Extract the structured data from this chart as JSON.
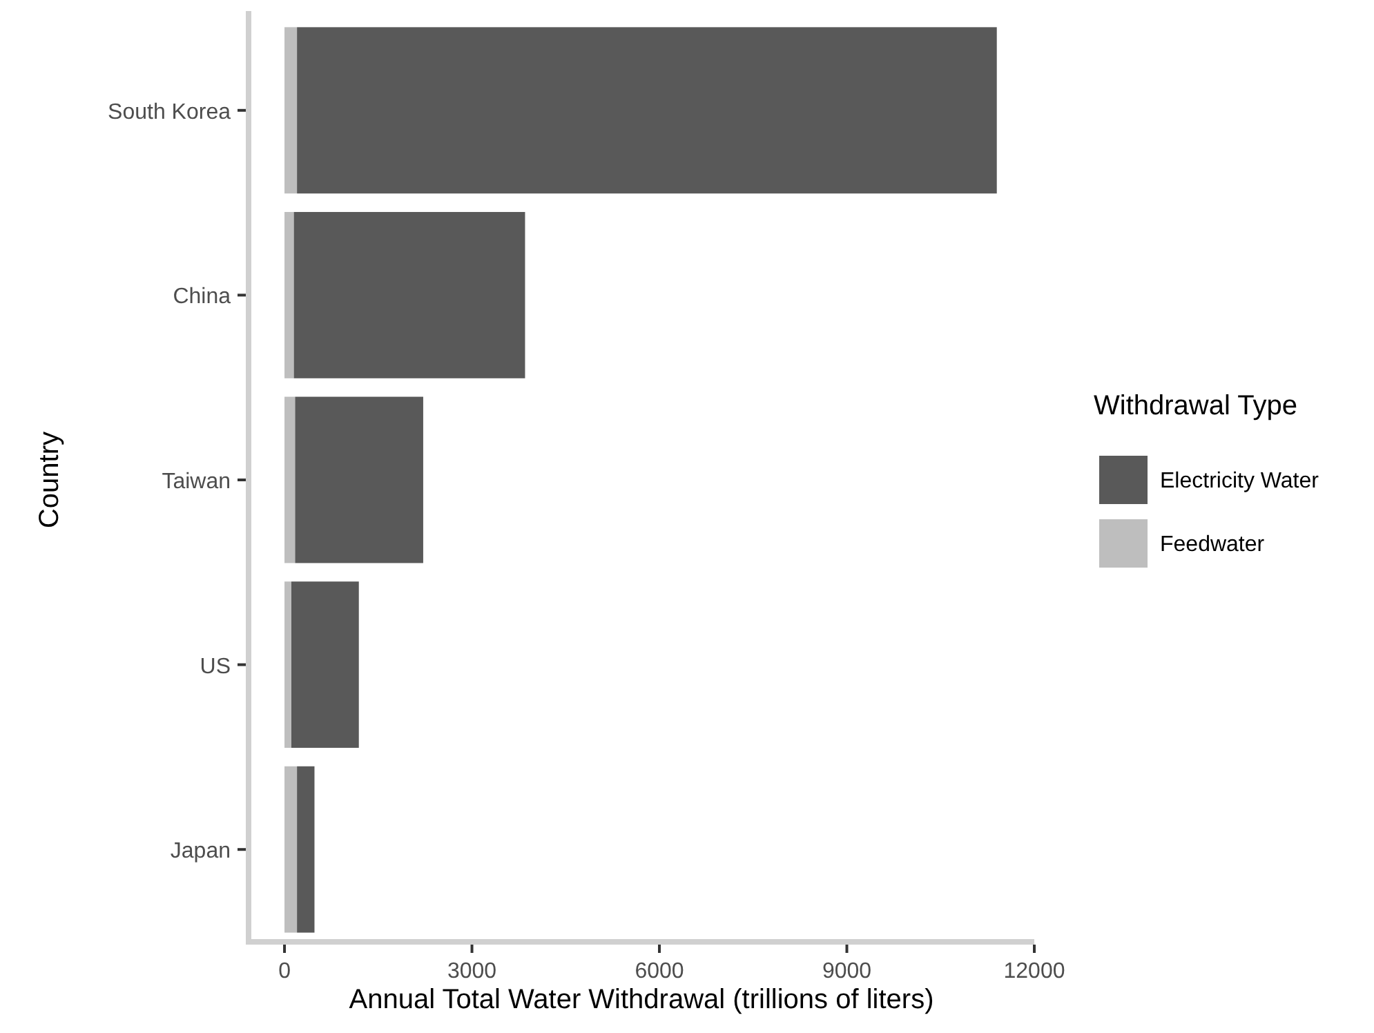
{
  "chart_data": {
    "type": "bar",
    "orientation": "horizontal",
    "stacked": true,
    "xlabel": "Annual Total Water Withdrawal (trillions of liters)",
    "ylabel": "Country",
    "legend_title": "Withdrawal Type",
    "legend": "right",
    "grid": false,
    "categories": [
      "South Korea",
      "China",
      "Taiwan",
      "US",
      "Japan"
    ],
    "series": [
      {
        "name": "Feedwater",
        "color": "#bebebe",
        "values": [
          200,
          150,
          170,
          110,
          200
        ]
      },
      {
        "name": "Electricity Water",
        "color": "#595959",
        "values": [
          11200,
          3700,
          2050,
          1080,
          280
        ]
      }
    ],
    "xlim": [
      -575,
      12000
    ],
    "xticks": [
      0,
      3000,
      6000,
      9000,
      12000
    ]
  }
}
